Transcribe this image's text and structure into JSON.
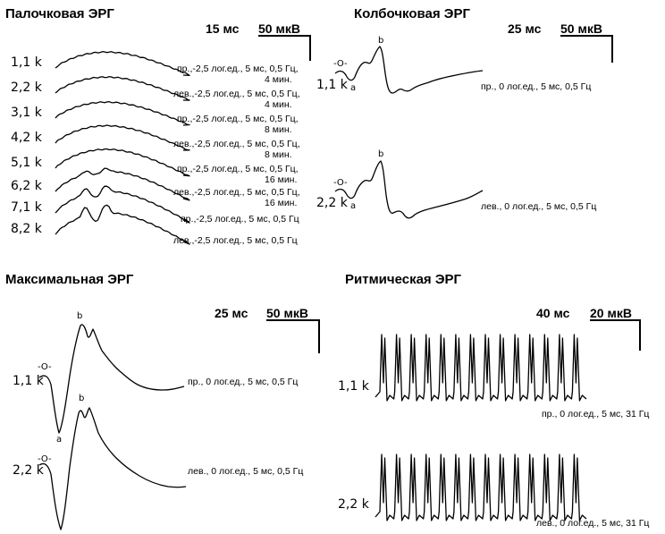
{
  "chart_data": [
    {
      "type": "line",
      "title": "Палочковая ЭРГ",
      "scale": {
        "time": "15 мс",
        "amp": "50 мкВ"
      },
      "series": [
        {
          "label": "1,1 k",
          "cond1": "пр.,-2,5 лог.ед., 5 мс, 0,5 Гц,",
          "cond2": "4 мин."
        },
        {
          "label": "2,2 k",
          "cond1": "лев.,-2,5 лог.ед., 5 мс, 0,5 Гц,",
          "cond2": "4 мин."
        },
        {
          "label": "3,1 k",
          "cond1": "пр.,-2,5 лог.ед., 5 мс, 0,5 Гц,",
          "cond2": "8 мин."
        },
        {
          "label": "4,2 k",
          "cond1": "лев.,-2,5 лог.ед., 5 мс, 0,5 Гц,",
          "cond2": "8 мин."
        },
        {
          "label": "5,1 k",
          "cond1": "пр.,-2,5 лог.ед., 5 мс, 0,5 Гц,",
          "cond2": "16 мин."
        },
        {
          "label": "6,2 k",
          "cond1": "лев.,-2,5 лог.ед., 5 мс, 0,5 Гц,",
          "cond2": "16 мин."
        },
        {
          "label": "7,1 k",
          "cond1": "пр.,-2,5 лог.ед., 5 мс, 0,5 Гц",
          "cond2": ""
        },
        {
          "label": "8,2 k",
          "cond1": "лев.,-2,5 лог.ед., 5 мс, 0,5 Гц",
          "cond2": ""
        }
      ]
    },
    {
      "type": "line",
      "title": "Колбочковая ЭРГ",
      "scale": {
        "time": "25 мс",
        "amp": "50 мкВ"
      },
      "markers": {
        "stim": "-O-",
        "a": "a",
        "b": "b"
      },
      "series": [
        {
          "label": "1,1 k",
          "cond1": "пр., 0 лог.ед., 5 мс, 0,5 Гц"
        },
        {
          "label": "2,2 k",
          "cond1": "лев., 0 лог.ед., 5 мс, 0,5 Гц"
        }
      ]
    },
    {
      "type": "line",
      "title": "Максимальная ЭРГ",
      "scale": {
        "time": "25 мс",
        "amp": "50 мкВ"
      },
      "markers": {
        "stim": "-O-",
        "a": "a",
        "b": "b"
      },
      "series": [
        {
          "label": "1,1 k",
          "cond1": "пр., 0 лог.ед., 5 мс, 0,5 Гц"
        },
        {
          "label": "2,2 k",
          "cond1": "лев., 0 лог.ед., 5 мс, 0,5 Гц"
        }
      ]
    },
    {
      "type": "line",
      "title": "Ритмическая ЭРГ",
      "scale": {
        "time": "40 мс",
        "amp": "20 мкВ"
      },
      "series": [
        {
          "label": "1,1 k",
          "cond1": "пр., 0 лог.ед., 5 мс, 31 Гц",
          "peaks": 14
        },
        {
          "label": "2,2 k",
          "cond1": "лев., 0 лог.ед., 5 мс, 31 Гц",
          "peaks": 14
        }
      ]
    }
  ]
}
